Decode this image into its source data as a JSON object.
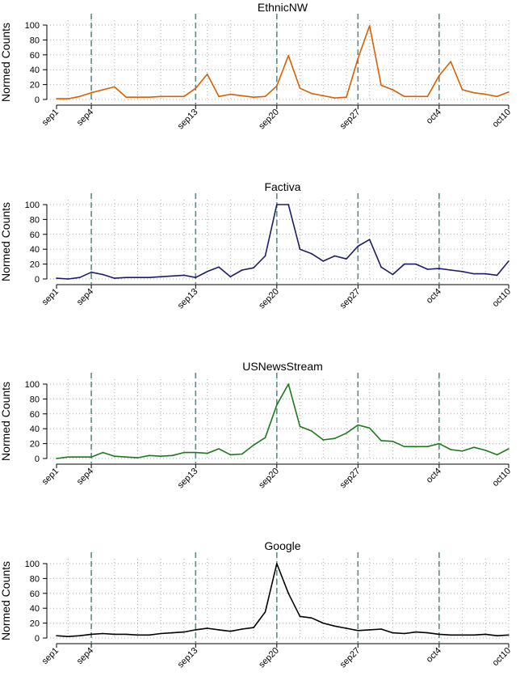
{
  "chart_data": [
    {
      "type": "line",
      "title": "EthnicNW",
      "ylabel": "Normed Counts",
      "ylim": [
        0,
        100
      ],
      "yticks": [
        0,
        20,
        40,
        60,
        80,
        100
      ],
      "x": [
        "sep1",
        "sep2",
        "sep3",
        "sep4",
        "sep5",
        "sep6",
        "sep7",
        "sep8",
        "sep9",
        "sep10",
        "sep11",
        "sep12",
        "sep13",
        "sep14",
        "sep15",
        "sep16",
        "sep17",
        "sep18",
        "sep19",
        "sep20",
        "sep21",
        "sep22",
        "sep23",
        "sep24",
        "sep25",
        "sep26",
        "sep27",
        "sep28",
        "sep29",
        "sep30",
        "oct1",
        "oct2",
        "oct3",
        "oct4",
        "oct5",
        "oct6",
        "oct7",
        "oct8",
        "oct9",
        "oct10"
      ],
      "xticks": [
        "sep1",
        "sep4",
        "sep13",
        "sep20",
        "sep27",
        "oct4",
        "oct10"
      ],
      "markers": [
        "sep4",
        "sep13",
        "sep20",
        "sep27",
        "oct4"
      ],
      "grid": true,
      "color": "#d95f02",
      "values": [
        1,
        1,
        4,
        9,
        13,
        17,
        3,
        3,
        3,
        4,
        4,
        4,
        15,
        34,
        4,
        7,
        5,
        3,
        4,
        18,
        59,
        15,
        8,
        5,
        2,
        3,
        55,
        99,
        19,
        13,
        4,
        4,
        4,
        32,
        51,
        13,
        9,
        7,
        4,
        10
      ]
    },
    {
      "type": "line",
      "title": "Factiva",
      "ylabel": "Normed Counts",
      "ylim": [
        0,
        100
      ],
      "yticks": [
        0,
        20,
        40,
        60,
        80,
        100
      ],
      "x": [
        "sep1",
        "sep2",
        "sep3",
        "sep4",
        "sep5",
        "sep6",
        "sep7",
        "sep8",
        "sep9",
        "sep10",
        "sep11",
        "sep12",
        "sep13",
        "sep14",
        "sep15",
        "sep16",
        "sep17",
        "sep18",
        "sep19",
        "sep20",
        "sep21",
        "sep22",
        "sep23",
        "sep24",
        "sep25",
        "sep26",
        "sep27",
        "sep28",
        "sep29",
        "sep30",
        "oct1",
        "oct2",
        "oct3",
        "oct4",
        "oct5",
        "oct6",
        "oct7",
        "oct8",
        "oct9",
        "oct10"
      ],
      "xticks": [
        "sep1",
        "sep4",
        "sep13",
        "sep20",
        "sep27",
        "oct4",
        "oct10"
      ],
      "markers": [
        "sep4",
        "sep13",
        "sep20",
        "sep27",
        "oct4"
      ],
      "grid": true,
      "color": "#1b1b6a",
      "values": [
        1,
        0,
        2,
        9,
        6,
        1,
        2,
        2,
        2,
        3,
        4,
        5,
        2,
        10,
        16,
        3,
        12,
        15,
        31,
        100,
        100,
        40,
        34,
        24,
        31,
        27,
        44,
        53,
        16,
        6,
        20,
        20,
        13,
        14,
        12,
        10,
        7,
        7,
        5,
        24
      ]
    },
    {
      "type": "line",
      "title": "USNewsStream",
      "ylabel": "Normed Counts",
      "ylim": [
        0,
        100
      ],
      "yticks": [
        0,
        20,
        40,
        60,
        80,
        100
      ],
      "x": [
        "sep1",
        "sep2",
        "sep3",
        "sep4",
        "sep5",
        "sep6",
        "sep7",
        "sep8",
        "sep9",
        "sep10",
        "sep11",
        "sep12",
        "sep13",
        "sep14",
        "sep15",
        "sep16",
        "sep17",
        "sep18",
        "sep19",
        "sep20",
        "sep21",
        "sep22",
        "sep23",
        "sep24",
        "sep25",
        "sep26",
        "sep27",
        "sep28",
        "sep29",
        "sep30",
        "oct1",
        "oct2",
        "oct3",
        "oct4",
        "oct5",
        "oct6",
        "oct7",
        "oct8",
        "oct9",
        "oct10"
      ],
      "xticks": [
        "sep1",
        "sep4",
        "sep13",
        "sep20",
        "sep27",
        "oct4",
        "oct10"
      ],
      "markers": [
        "sep4",
        "sep13",
        "sep20",
        "sep27",
        "oct4"
      ],
      "grid": true,
      "color": "#1a7a1a",
      "values": [
        0,
        2,
        2,
        2,
        8,
        3,
        2,
        1,
        4,
        3,
        4,
        8,
        8,
        7,
        13,
        5,
        6,
        18,
        28,
        72,
        100,
        43,
        37,
        25,
        27,
        34,
        45,
        41,
        24,
        23,
        16,
        16,
        16,
        20,
        12,
        10,
        15,
        11,
        5,
        13
      ]
    },
    {
      "type": "line",
      "title": "Google",
      "ylabel": "Normed Counts",
      "ylim": [
        0,
        100
      ],
      "yticks": [
        0,
        20,
        40,
        60,
        80,
        100
      ],
      "x": [
        "sep1",
        "sep2",
        "sep3",
        "sep4",
        "sep5",
        "sep6",
        "sep7",
        "sep8",
        "sep9",
        "sep10",
        "sep11",
        "sep12",
        "sep13",
        "sep14",
        "sep15",
        "sep16",
        "sep17",
        "sep18",
        "sep19",
        "sep20",
        "sep21",
        "sep22",
        "sep23",
        "sep24",
        "sep25",
        "sep26",
        "sep27",
        "sep28",
        "sep29",
        "sep30",
        "oct1",
        "oct2",
        "oct3",
        "oct4",
        "oct5",
        "oct6",
        "oct7",
        "oct8",
        "oct9",
        "oct10"
      ],
      "xticks": [
        "sep1",
        "sep4",
        "sep13",
        "sep20",
        "sep27",
        "oct4",
        "oct10"
      ],
      "markers": [
        "sep4",
        "sep13",
        "sep20",
        "sep27",
        "oct4"
      ],
      "grid": true,
      "color": "#000000",
      "values": [
        3,
        2,
        3,
        5,
        6,
        5,
        5,
        4,
        4,
        6,
        7,
        8,
        11,
        13,
        11,
        9,
        12,
        14,
        35,
        100,
        60,
        29,
        27,
        20,
        16,
        13,
        10,
        11,
        12,
        7,
        6,
        8,
        7,
        5,
        4,
        4,
        4,
        5,
        3,
        4
      ]
    }
  ]
}
